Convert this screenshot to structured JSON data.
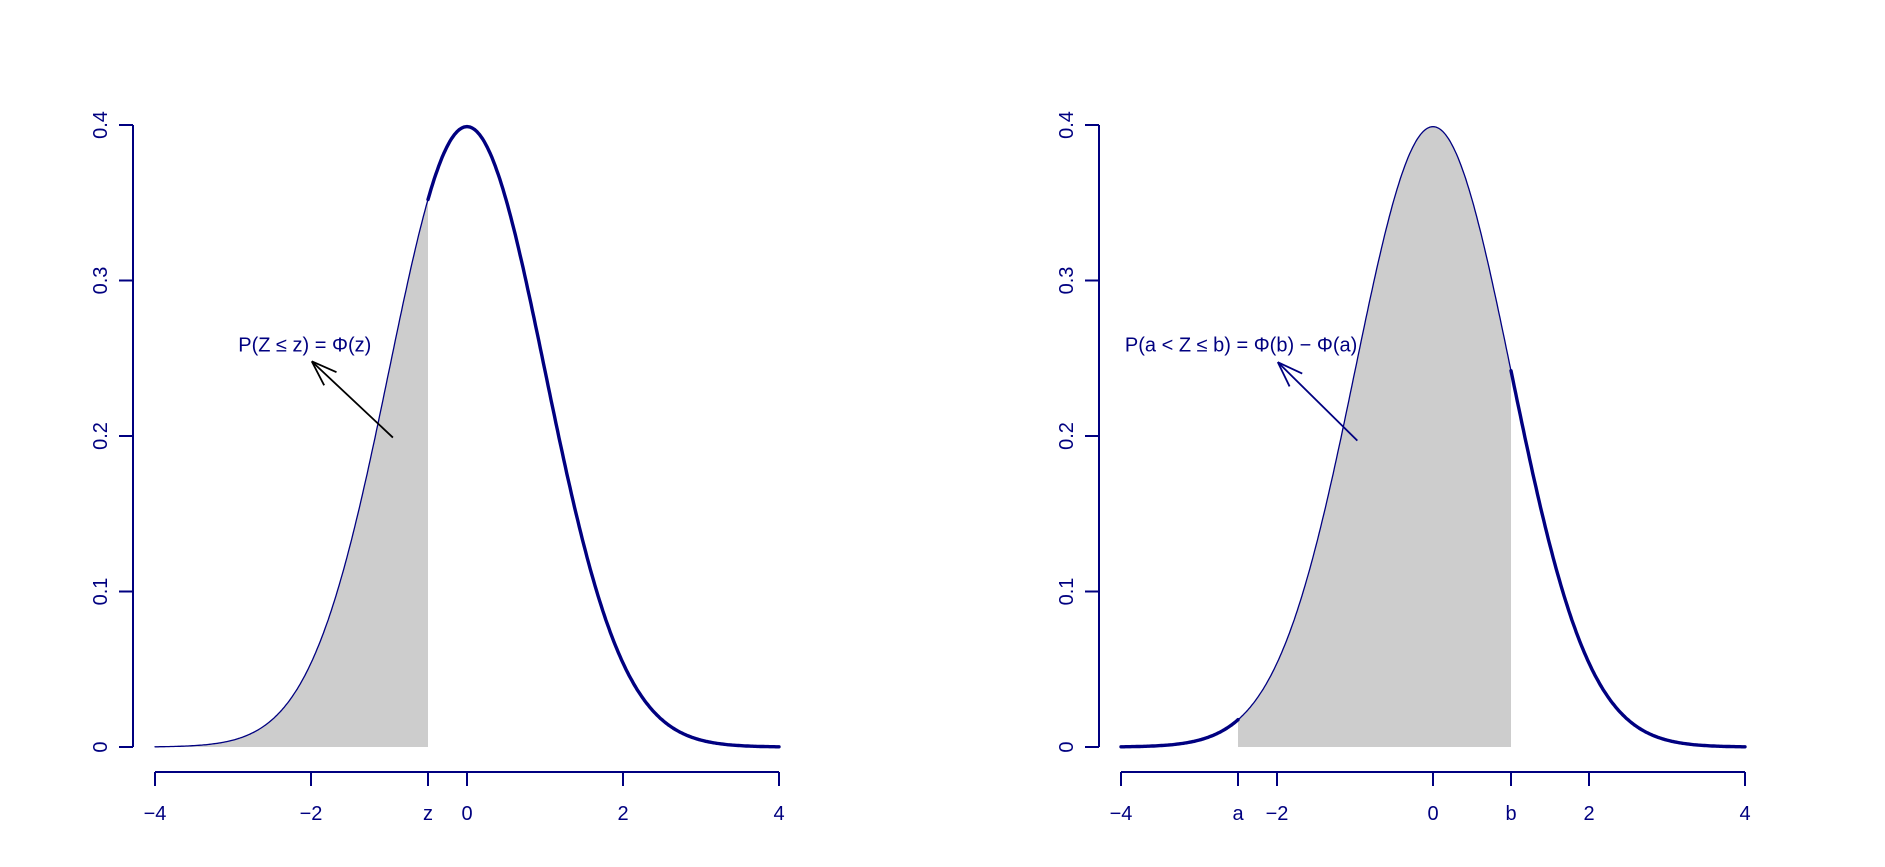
{
  "figure": {
    "background": "#ffffff",
    "description": "Two side-by-side plots of the standard normal density with shaded probability regions"
  },
  "colors": {
    "curve": "#000080",
    "axis": "#000080",
    "tick_label": "#000080",
    "shade_fill": "#cdcdcd",
    "annotation_text": "#000080",
    "left_arrow": "#000000",
    "right_arrow": "#000080"
  },
  "chart_data": [
    {
      "type": "area",
      "title": "",
      "xlabel": "",
      "ylabel": "",
      "curve": {
        "distribution": "standard normal density",
        "formula": "f(x) = exp(-x^2/2)/sqrt(2*pi)",
        "x_range": [
          -4,
          4
        ],
        "peak": {
          "x": 0,
          "density": 0.3989
        }
      },
      "key_points": [
        {
          "x": -4,
          "density": 0.0001
        },
        {
          "x": -2,
          "density": 0.054
        },
        {
          "x": -0.5,
          "density": 0.3521
        },
        {
          "x": 0,
          "density": 0.3989
        },
        {
          "x": 2,
          "density": 0.054
        },
        {
          "x": 4,
          "density": 0.0001
        }
      ],
      "xlim": [
        -4,
        4
      ],
      "ylim": [
        0,
        0.4
      ],
      "grid": false,
      "legend": "none",
      "x_ticks": [
        {
          "value": -4,
          "label": "−4"
        },
        {
          "value": -2,
          "label": "−2"
        },
        {
          "value": -0.5,
          "label": "z"
        },
        {
          "value": 0,
          "label": "0"
        },
        {
          "value": 2,
          "label": "2"
        },
        {
          "value": 4,
          "label": "4"
        }
      ],
      "y_ticks": [
        {
          "value": 0,
          "label": "0"
        },
        {
          "value": 0.1,
          "label": "0.1"
        },
        {
          "value": 0.2,
          "label": "0.2"
        },
        {
          "value": 0.3,
          "label": "0.3"
        },
        {
          "value": 0.4,
          "label": "0.4"
        }
      ],
      "shade": {
        "from": -4,
        "to": -0.5,
        "meaning": "P(Z ≤ z)"
      },
      "annotation": {
        "text": "P(Z ≤ z) = Φ(z)",
        "text_x": -2.08,
        "text_y": 0.259,
        "arrow": {
          "from_x": -0.95,
          "from_y": 0.199,
          "to_x": -1.99,
          "to_y": 0.248,
          "color": "#000000"
        }
      }
    },
    {
      "type": "area",
      "title": "",
      "xlabel": "",
      "ylabel": "",
      "curve": {
        "distribution": "standard normal density",
        "formula": "f(x) = exp(-x^2/2)/sqrt(2*pi)",
        "x_range": [
          -4,
          4
        ],
        "peak": {
          "x": 0,
          "density": 0.3989
        }
      },
      "key_points": [
        {
          "x": -4,
          "density": 0.0001
        },
        {
          "x": -2.5,
          "density": 0.0175
        },
        {
          "x": -2,
          "density": 0.054
        },
        {
          "x": 0,
          "density": 0.3989
        },
        {
          "x": 1,
          "density": 0.242
        },
        {
          "x": 2,
          "density": 0.054
        },
        {
          "x": 4,
          "density": 0.0001
        }
      ],
      "xlim": [
        -4,
        4
      ],
      "ylim": [
        0,
        0.4
      ],
      "grid": false,
      "legend": "none",
      "x_ticks": [
        {
          "value": -4,
          "label": "−4"
        },
        {
          "value": -2.5,
          "label": "a"
        },
        {
          "value": -2,
          "label": "−2"
        },
        {
          "value": 0,
          "label": "0"
        },
        {
          "value": 1,
          "label": "b"
        },
        {
          "value": 2,
          "label": "2"
        },
        {
          "value": 4,
          "label": "4"
        }
      ],
      "y_ticks": [
        {
          "value": 0,
          "label": "0"
        },
        {
          "value": 0.1,
          "label": "0.1"
        },
        {
          "value": 0.2,
          "label": "0.2"
        },
        {
          "value": 0.3,
          "label": "0.3"
        },
        {
          "value": 0.4,
          "label": "0.4"
        }
      ],
      "shade": {
        "from": -2.5,
        "to": 1,
        "meaning": "P(a < Z ≤ b)"
      },
      "annotation": {
        "text": "P(a < Z ≤ b) = Φ(b) − Φ(a)",
        "text_x": -2.46,
        "text_y": 0.259,
        "arrow": {
          "from_x": -0.97,
          "from_y": 0.197,
          "to_x": -1.99,
          "to_y": 0.2475,
          "color": "#000080"
        }
      }
    }
  ]
}
